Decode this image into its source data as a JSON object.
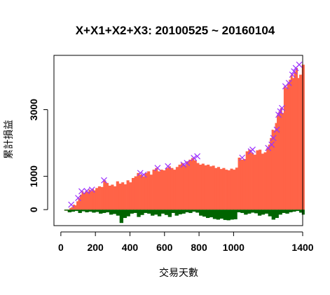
{
  "chart_data": {
    "type": "area",
    "title": "X+X1+X2+X3: 20100525 ~ 20160104",
    "xlabel": "交易天數",
    "ylabel": "累計損益",
    "x_ticks": [
      0,
      200,
      400,
      600,
      800,
      1000,
      1400
    ],
    "y_ticks": [
      0,
      1000,
      3000
    ],
    "xlim": [
      -40,
      1400
    ],
    "ylim": [
      -480,
      4630
    ],
    "colors": {
      "profit": "#ff6347",
      "drawdown": "#006400",
      "marker": "#9b30ff",
      "axis": "#000000"
    },
    "series": [
      {
        "name": "",
        "x": [
          0,
          20,
          40,
          50,
          60,
          70,
          80,
          90,
          100,
          110,
          120,
          130,
          140,
          150,
          160,
          170,
          180,
          190,
          200,
          215,
          230,
          245,
          260,
          275,
          290,
          305,
          320,
          335,
          350,
          365,
          380,
          395,
          410,
          425,
          440,
          455,
          470,
          485,
          500,
          515,
          530,
          545,
          560,
          575,
          590,
          605,
          620,
          635,
          650,
          665,
          680,
          695,
          710,
          725,
          740,
          755,
          770,
          785,
          800,
          815,
          830,
          845,
          860,
          875,
          890,
          905,
          920,
          935,
          950,
          965,
          980,
          995,
          1010,
          1025,
          1040,
          1055,
          1070,
          1085,
          1100,
          1115,
          1130,
          1145,
          1160,
          1175,
          1190,
          1200,
          1210,
          1220,
          1230,
          1240,
          1250,
          1260,
          1270,
          1280,
          1290,
          1300,
          1310,
          1320,
          1330,
          1340,
          1350,
          1360,
          1370,
          1380,
          1395
        ],
        "y": [
          0,
          -30,
          -80,
          50,
          80,
          150,
          130,
          250,
          350,
          450,
          550,
          500,
          560,
          530,
          600,
          560,
          620,
          580,
          650,
          700,
          680,
          880,
          800,
          720,
          750,
          700,
          850,
          780,
          820,
          760,
          880,
          820,
          950,
          1000,
          1100,
          1050,
          1000,
          1100,
          1150,
          1050,
          1200,
          1250,
          1150,
          1200,
          1180,
          1250,
          1300,
          1250,
          1200,
          1280,
          1350,
          1400,
          1330,
          1450,
          1500,
          1550,
          1480,
          1400,
          1350,
          1380,
          1330,
          1350,
          1300,
          1320,
          1250,
          1280,
          1220,
          1250,
          1200,
          1180,
          1230,
          1200,
          1260,
          1560,
          1500,
          1520,
          1750,
          1800,
          1700,
          1650,
          1780,
          1800,
          1680,
          1720,
          1850,
          1950,
          2150,
          2400,
          2380,
          2600,
          2850,
          2950,
          3050,
          2900,
          3700,
          3650,
          3800,
          3900,
          4050,
          3950,
          4150,
          4250,
          3950,
          4050,
          4350
        ]
      },
      {
        "name": "",
        "x": [
          0,
          20,
          40,
          60,
          80,
          100,
          120,
          140,
          160,
          180,
          200,
          220,
          240,
          260,
          280,
          300,
          320,
          340,
          360,
          380,
          400,
          420,
          440,
          460,
          480,
          500,
          520,
          540,
          560,
          580,
          600,
          620,
          640,
          660,
          680,
          700,
          720,
          740,
          760,
          780,
          800,
          820,
          840,
          860,
          880,
          900,
          920,
          940,
          960,
          980,
          1000,
          1020,
          1040,
          1060,
          1080,
          1100,
          1120,
          1140,
          1160,
          1180,
          1200,
          1220,
          1240,
          1260,
          1280,
          1300,
          1320,
          1340,
          1360,
          1380,
          1395
        ],
        "y": [
          0,
          -30,
          -80,
          -60,
          -40,
          -100,
          -50,
          -80,
          -60,
          -90,
          -70,
          -120,
          -100,
          -80,
          -150,
          -130,
          -180,
          -400,
          -250,
          -200,
          -120,
          -100,
          -220,
          -160,
          -100,
          -120,
          -180,
          -150,
          -200,
          -120,
          -160,
          -220,
          -100,
          -180,
          -140,
          -120,
          -80,
          -100,
          -60,
          -90,
          -180,
          -210,
          -250,
          -230,
          -280,
          -300,
          -270,
          -310,
          -320,
          -300,
          -290,
          -80,
          -100,
          -150,
          -120,
          -90,
          -110,
          -180,
          -150,
          -120,
          -200,
          -300,
          -250,
          -150,
          -100,
          -120,
          -80,
          -60,
          -40,
          -90,
          -150
        ]
      },
      {
        "name": "",
        "x": [
          60,
          100,
          120,
          150,
          180,
          250,
          460,
          480,
          560,
          620,
          710,
          730,
          770,
          790,
          1050,
          1100,
          1110,
          1200,
          1220,
          1230,
          1250,
          1260,
          1270,
          1280,
          1300,
          1320,
          1340,
          1350,
          1360,
          1380
        ],
        "y": [
          150,
          350,
          550,
          560,
          600,
          880,
          1100,
          1050,
          1250,
          1300,
          1350,
          1400,
          1550,
          1600,
          1560,
          1750,
          1800,
          1850,
          1950,
          2150,
          2400,
          2850,
          2950,
          3050,
          3700,
          3800,
          4050,
          4150,
          4250,
          4350
        ]
      }
    ]
  }
}
